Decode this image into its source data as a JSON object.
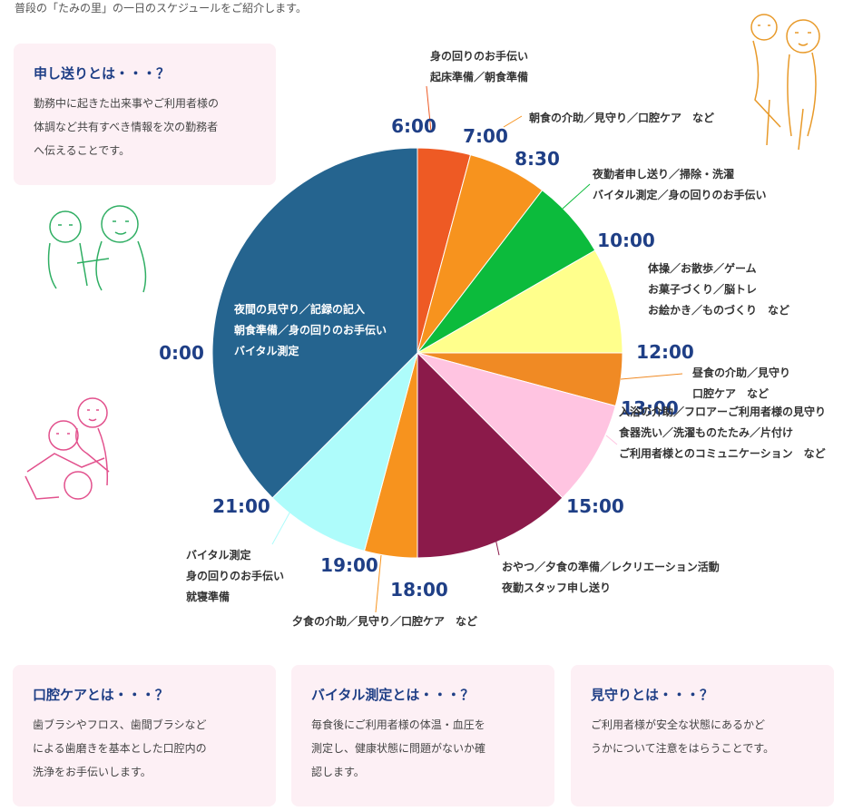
{
  "intro": "普段の「たみの里」の一日のスケジュールをご紹介します。",
  "cards": {
    "moushiokuri": {
      "title": "申し送りとは・・・？",
      "body": [
        "勤務中に起きた出来事やご利用者様の",
        "体調など共有すべき情報を次の勤務者",
        "へ伝えることです。"
      ]
    },
    "koukou": {
      "title": "口腔ケアとは・・・？",
      "body": [
        "歯ブラシやフロス、歯間ブラシなど",
        "による歯磨きを基本とした口腔内の",
        "洗浄をお手伝いします。"
      ]
    },
    "vital": {
      "title": "バイタル測定とは・・・？",
      "body": [
        "毎食後にご利用者様の体温・血圧を",
        "測定し、健康状態に問題がないか確",
        "認します。"
      ]
    },
    "mimamori": {
      "title": "見守りとは・・・？",
      "body": [
        "ご利用者様が安全な状態にあるかど",
        "うかについて注意をはらうことです。"
      ]
    }
  },
  "chart_data": {
    "type": "pie",
    "title": "",
    "slices": [
      {
        "start": "6:00",
        "duration": 1,
        "color": "#ee5a24",
        "activity": [
          "身の回りのお手伝い",
          "起床準備／朝食準備"
        ]
      },
      {
        "start": "7:00",
        "duration": 1.5,
        "color": "#f7931e",
        "activity": [
          "朝食の介助／見守り／口腔ケア　など"
        ]
      },
      {
        "start": "8:30",
        "duration": 1.5,
        "color": "#0cbb3c",
        "activity": [
          "夜勤者申し送り／掃除・洗濯",
          "バイタル測定／身の回りのお手伝い"
        ]
      },
      {
        "start": "10:00",
        "duration": 2,
        "color": "#ffff8c",
        "activity": [
          "体操／お散歩／ゲーム",
          "お菓子づくり／脳トレ",
          "お絵かき／ものづくり　など"
        ]
      },
      {
        "start": "12:00",
        "duration": 1,
        "color": "#f08a24",
        "activity": [
          "昼食の介助／見守り",
          "口腔ケア　など"
        ]
      },
      {
        "start": "13:00",
        "duration": 2,
        "color": "#ffc4e1",
        "activity": [
          "入浴の介助／フロアーご利用者様の見守り",
          "食器洗い／洗濯ものたたみ／片付け",
          "ご利用者様とのコミュニケーション　など"
        ]
      },
      {
        "start": "15:00",
        "duration": 3,
        "color": "#8b1a4a",
        "activity": [
          "おやつ／夕食の準備／レクリエーション活動",
          "夜勤スタッフ申し送り"
        ]
      },
      {
        "start": "18:00",
        "duration": 1,
        "color": "#f7931e",
        "activity": [
          "夕食の介助／見守り／口腔ケア　など"
        ]
      },
      {
        "start": "19:00",
        "duration": 2,
        "color": "#aefcfb",
        "activity": [
          "バイタル測定",
          "身の回りのお手伝い",
          "就寝準備"
        ]
      },
      {
        "start": "21:00",
        "duration": 9,
        "color": "#25648f",
        "activity": [
          "夜間の見守り／記録の記入",
          "朝食準備／身の回りのお手伝い",
          "バイタル測定"
        ]
      }
    ],
    "extra_label": "0:00"
  },
  "illustrations": [
    "caregiver-illustration-orange",
    "caregiver-illustration-green",
    "caregiver-illustration-pink"
  ]
}
